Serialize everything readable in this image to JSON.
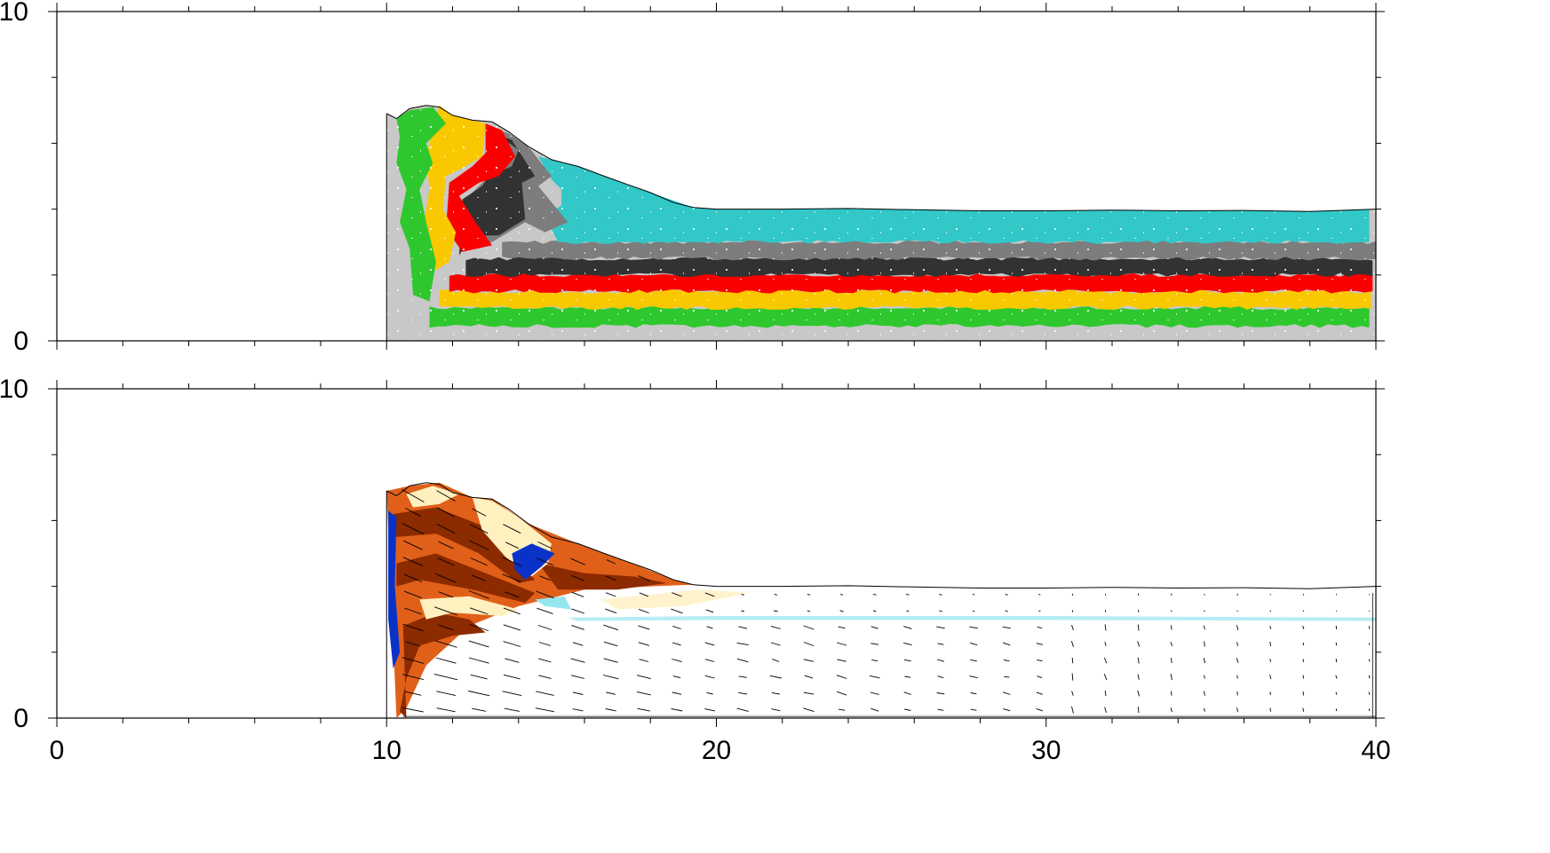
{
  "chart_data": [
    {
      "type": "area",
      "panel": "top",
      "title": "",
      "xlabel": "",
      "ylabel": "",
      "xlim": [
        0,
        40
      ],
      "ylim": [
        0,
        10
      ],
      "x_ticks": [
        0,
        10,
        20,
        30,
        40
      ],
      "y_ticks": [
        0,
        10
      ],
      "y_tick_labels": [
        "0",
        "10"
      ],
      "grid": false,
      "surface": {
        "x": [
          10.0,
          10.3,
          10.7,
          11.2,
          11.6,
          12.0,
          12.6,
          13.2,
          13.7,
          14.3,
          15.0,
          15.8,
          16.6,
          17.3,
          18.0,
          18.7,
          19.3,
          20.0,
          22.0,
          24.0,
          26.0,
          28.0,
          30.0,
          32.0,
          34.0,
          36.0,
          38.0,
          40.0
        ],
        "y": [
          6.9,
          6.75,
          7.05,
          7.15,
          7.1,
          6.85,
          6.7,
          6.65,
          6.35,
          5.9,
          5.5,
          5.3,
          5.0,
          4.75,
          4.5,
          4.2,
          4.05,
          4.0,
          4.0,
          4.02,
          3.98,
          3.95,
          3.95,
          3.97,
          3.95,
          3.96,
          3.93,
          4.0
        ]
      },
      "layer_colors": {
        "basement": "#c8c8c8",
        "green": "#2ec82e",
        "yellow": "#fac800",
        "red": "#fa0000",
        "dark_gray": "#323232",
        "gray": "#7d7d7d",
        "cyan": "#32c8c8"
      },
      "layers": [
        {
          "color": "basement",
          "bottom": 0.0,
          "top": 0.45
        },
        {
          "color": "green",
          "bottom": 0.45,
          "top": 1.0
        },
        {
          "color": "yellow",
          "bottom": 1.0,
          "top": 1.5
        },
        {
          "color": "red",
          "bottom": 1.5,
          "top": 2.0
        },
        {
          "color": "dark_gray",
          "bottom": 2.0,
          "top": 2.5
        },
        {
          "color": "gray",
          "bottom": 2.5,
          "top": 3.0
        },
        {
          "color": "cyan",
          "bottom": 3.0,
          "top": 4.0
        }
      ]
    },
    {
      "type": "heatmap",
      "panel": "bottom",
      "title": "",
      "xlabel": "",
      "ylabel": "",
      "xlim": [
        0,
        40
      ],
      "ylim": [
        0,
        10
      ],
      "x_ticks": [
        0,
        10,
        20,
        30,
        40
      ],
      "x_tick_labels": [
        "0",
        "10",
        "20",
        "30",
        "40"
      ],
      "y_ticks": [
        0,
        10
      ],
      "y_tick_labels": [
        "0",
        "10"
      ],
      "grid": false,
      "colors": {
        "high": "#8c2a00",
        "mid": "#e0601a",
        "low": "#fff0c0",
        "negative": "#0a32c8",
        "slight_negative": "#96e6f0"
      },
      "vectors": "velocity arrows over the wedge"
    }
  ]
}
